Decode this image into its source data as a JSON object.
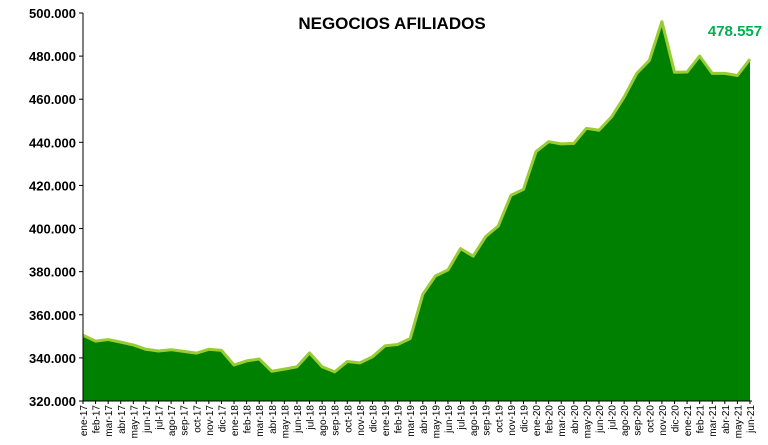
{
  "chart_data": {
    "type": "area",
    "title": "NEGOCIOS AFILIADOS",
    "last_value_label": "478.557",
    "colors": {
      "fill": "#008000",
      "line": "#99cc33",
      "last_label": "#00b050"
    },
    "ylim": [
      320000,
      500000
    ],
    "y_ticks": [
      "320.000",
      "340.000",
      "360.000",
      "380.000",
      "400.000",
      "420.000",
      "440.000",
      "460.000",
      "480.000",
      "500.000"
    ],
    "y_tick_values": [
      320000,
      340000,
      360000,
      380000,
      400000,
      420000,
      440000,
      460000,
      480000,
      500000
    ],
    "grid": false,
    "categories": [
      "ene-17",
      "feb-17",
      "mar-17",
      "abr-17",
      "may-17",
      "jun-17",
      "jul-17",
      "ago-17",
      "sep-17",
      "oct-17",
      "nov-17",
      "dic-17",
      "ene-18",
      "feb-18",
      "mar-18",
      "abr-18",
      "may-18",
      "jun-18",
      "jul-18",
      "ago-18",
      "sep-18",
      "oct-18",
      "nov-18",
      "dic-18",
      "ene-19",
      "feb-19",
      "mar-19",
      "abr-19",
      "may-19",
      "jun-19",
      "jul-19",
      "ago-19",
      "sep-19",
      "oct-19",
      "nov-19",
      "dic-19",
      "ene-20",
      "feb-20",
      "mar-20",
      "abr-20",
      "may-20",
      "jun-20",
      "jul-20",
      "ago-20",
      "sep-20",
      "oct-20",
      "nov-20",
      "dic-20",
      "ene-21",
      "feb-21",
      "mar-21",
      "abr-21",
      "may-21",
      "jun-21"
    ],
    "values": [
      350500,
      347800,
      348500,
      347300,
      346000,
      344000,
      343200,
      343800,
      343000,
      342200,
      344000,
      343500,
      336700,
      338600,
      339500,
      333800,
      334800,
      335900,
      342300,
      335900,
      333500,
      338300,
      337700,
      340500,
      345600,
      346200,
      349000,
      369500,
      378000,
      380800,
      390700,
      387200,
      396300,
      401200,
      415400,
      418200,
      435700,
      440300,
      439300,
      439500,
      446500,
      445600,
      451800,
      461000,
      472000,
      478000,
      496000,
      472500,
      472600,
      480000,
      472000,
      472000,
      471000,
      478557
    ]
  }
}
